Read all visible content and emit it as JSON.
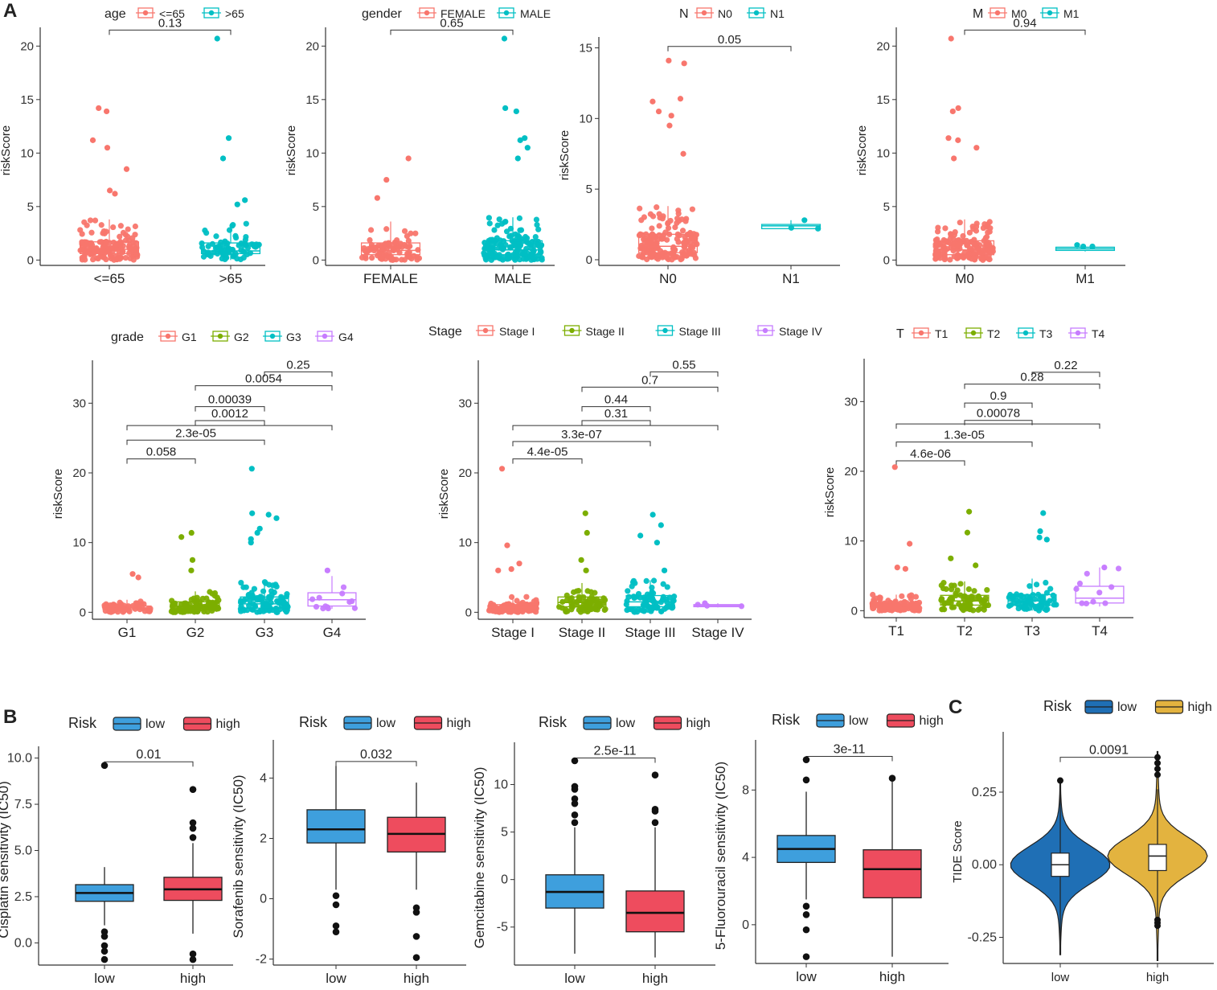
{
  "panel_labels": {
    "A": "A",
    "B": "B",
    "C": "C"
  },
  "colors": {
    "red": "#F8766D",
    "cyan": "#00BFC4",
    "green": "#7CAE00",
    "purple": "#C77CFF",
    "blue_box": "#3E9FDD",
    "red_box": "#EE4C5E",
    "violin_blue": "#1F6FB5",
    "violin_gold": "#E3B33F"
  },
  "chart_data": [
    {
      "type": "box",
      "panel": "A",
      "legend_title": "age",
      "legend": [
        "<=65",
        ">65"
      ],
      "categories": [
        "<=65",
        ">65"
      ],
      "ylabel": "riskScore",
      "yticks": [
        0,
        5,
        10,
        15,
        20
      ],
      "ylim": [
        -0.5,
        21
      ],
      "box": [
        [
          0.6,
          1.0,
          1.7
        ],
        [
          0.6,
          0.85,
          1.6
        ]
      ],
      "whisker": [
        [
          0,
          3.8
        ],
        [
          0,
          3.4
        ]
      ],
      "outliers": [
        [
          14.2,
          13.9,
          11.2,
          10.5,
          8.5,
          6.5,
          6.2
        ],
        [
          20.7,
          11.4,
          9.5,
          5.6,
          5.2
        ]
      ],
      "n": [
        150,
        80
      ],
      "comparisons": [
        {
          "from": 0,
          "to": 1,
          "label": "0.13",
          "y": 21.5
        }
      ]
    },
    {
      "type": "box",
      "panel": "A",
      "legend_title": "gender",
      "legend": [
        "FEMALE",
        "MALE"
      ],
      "categories": [
        "FEMALE",
        "MALE"
      ],
      "ylabel": "riskScore",
      "yticks": [
        0,
        5,
        10,
        15,
        20
      ],
      "ylim": [
        -0.5,
        21
      ],
      "box": [
        [
          0.5,
          0.9,
          1.6
        ],
        [
          0.5,
          0.95,
          1.8
        ]
      ],
      "whisker": [
        [
          0,
          3.6
        ],
        [
          0,
          4
        ]
      ],
      "outliers": [
        [
          9.5,
          7.5,
          5.8
        ],
        [
          20.7,
          14.2,
          13.9,
          11.4,
          11.2,
          10.5,
          9.5
        ]
      ],
      "n": [
        90,
        150
      ],
      "comparisons": [
        {
          "from": 0,
          "to": 1,
          "label": "0.65",
          "y": 21.5
        }
      ]
    },
    {
      "type": "box",
      "panel": "A",
      "legend_title": "N",
      "legend": [
        "N0",
        "N1"
      ],
      "categories": [
        "N0",
        "N1"
      ],
      "ylabel": "riskScore",
      "yticks": [
        0,
        5,
        10,
        15
      ],
      "ylim": [
        -0.4,
        15.2
      ],
      "box": [
        [
          0.5,
          0.95,
          1.8
        ],
        [
          2.2,
          2.4,
          2.5
        ]
      ],
      "whisker": [
        [
          0,
          3.8
        ],
        [
          2.2,
          2.8
        ]
      ],
      "outliers": [
        [
          14.1,
          13.9,
          11.4,
          11.2,
          10.5,
          10.2,
          9.5,
          7.5
        ],
        [
          2.8
        ]
      ],
      "n": [
        170,
        2
      ],
      "comparisons": [
        {
          "from": 0,
          "to": 1,
          "label": "0.05",
          "y": 15.1
        }
      ]
    },
    {
      "type": "box",
      "panel": "A",
      "legend_title": "M",
      "legend": [
        "M0",
        "M1"
      ],
      "categories": [
        "M0",
        "M1"
      ],
      "ylabel": "riskScore",
      "yticks": [
        0,
        5,
        10,
        15,
        20
      ],
      "ylim": [
        -0.5,
        21
      ],
      "box": [
        [
          0.5,
          0.95,
          1.8
        ],
        [
          0.9,
          1.05,
          1.2
        ]
      ],
      "whisker": [
        [
          0,
          3.8
        ],
        [
          0.8,
          1.4
        ]
      ],
      "outliers": [
        [
          20.7,
          14.2,
          13.9,
          11.4,
          11.2,
          10.5,
          9.5
        ],
        [
          1.4
        ]
      ],
      "n": [
        170,
        2
      ],
      "comparisons": [
        {
          "from": 0,
          "to": 1,
          "label": "0.94",
          "y": 21.5
        }
      ]
    },
    {
      "type": "box",
      "panel": "A",
      "legend_title": "grade",
      "legend": [
        "G1",
        "G2",
        "G3",
        "G4"
      ],
      "categories": [
        "G1",
        "G2",
        "G3",
        "G4"
      ],
      "ylabel": "riskScore",
      "yticks": [
        0,
        10,
        20,
        30
      ],
      "ylim": [
        -1,
        35
      ],
      "box": [
        [
          0.4,
          0.6,
          0.9
        ],
        [
          0.5,
          0.9,
          1.5
        ],
        [
          0.6,
          1.2,
          2.2
        ],
        [
          0.9,
          1.8,
          2.8
        ]
      ],
      "whisker": [
        [
          0,
          1.8
        ],
        [
          0,
          3
        ],
        [
          0,
          4.4
        ],
        [
          0.5,
          5.2
        ]
      ],
      "outliers": [
        [
          5.5,
          5
        ],
        [
          11.4,
          10.8,
          7.5,
          6
        ],
        [
          20.6,
          14.2,
          14,
          13.5,
          12,
          11.4,
          10.5,
          10
        ],
        [
          6
        ]
      ],
      "n": [
        60,
        90,
        100,
        12
      ],
      "comparisons": [
        {
          "from": 2,
          "to": 3,
          "label": "0.25",
          "y": 34.5
        },
        {
          "from": 1,
          "to": 3,
          "label": "0.0054",
          "y": 32.5
        },
        {
          "from": 1,
          "to": 2,
          "label": "0.00039",
          "y": 29.5
        },
        {
          "from": 1,
          "to": 2,
          "label": "0.0012",
          "y": 27.5
        },
        {
          "from": 0,
          "to": 3,
          "label": "",
          "y": 26.8
        },
        {
          "from": 0,
          "to": 2,
          "label": "2.3e-05",
          "y": 24.7
        },
        {
          "from": 0,
          "to": 1,
          "label": "0.058",
          "y": 22
        }
      ]
    },
    {
      "type": "box",
      "panel": "A",
      "legend_title": "Stage",
      "legend": [
        "Stage I",
        "Stage II",
        "Stage III",
        "Stage IV"
      ],
      "categories": [
        "Stage I",
        "Stage II",
        "Stage III",
        "Stage IV"
      ],
      "ylabel": "riskScore",
      "yticks": [
        0,
        10,
        20,
        30
      ],
      "ylim": [
        -1,
        35
      ],
      "box": [
        [
          0.4,
          0.7,
          1.1
        ],
        [
          0.8,
          1.4,
          2.2
        ],
        [
          0.8,
          1.5,
          2.4
        ],
        [
          0.8,
          0.95,
          1.1
        ]
      ],
      "whisker": [
        [
          0,
          2.3
        ],
        [
          0,
          4.2
        ],
        [
          0,
          4.6
        ],
        [
          0.7,
          1.3
        ]
      ],
      "outliers": [
        [
          20.6,
          9.6,
          7,
          6.2,
          6
        ],
        [
          14.2,
          11.4,
          7.5,
          6
        ],
        [
          14,
          12.5,
          11,
          10,
          6
        ],
        [
          1.3
        ]
      ],
      "n": [
        110,
        70,
        80,
        3
      ],
      "comparisons": [
        {
          "from": 2,
          "to": 3,
          "label": "0.55",
          "y": 34.5
        },
        {
          "from": 1,
          "to": 3,
          "label": "0.7",
          "y": 32.3
        },
        {
          "from": 1,
          "to": 2,
          "label": "0.44",
          "y": 29.5
        },
        {
          "from": 1,
          "to": 2,
          "label": "0.31",
          "y": 27.5
        },
        {
          "from": 0,
          "to": 3,
          "label": "",
          "y": 26.8
        },
        {
          "from": 0,
          "to": 2,
          "label": "3.3e-07",
          "y": 24.5
        },
        {
          "from": 0,
          "to": 1,
          "label": "4.4e-05",
          "y": 22
        }
      ]
    },
    {
      "type": "box",
      "panel": "A",
      "legend_title": "T",
      "legend": [
        "T1",
        "T2",
        "T3",
        "T4"
      ],
      "categories": [
        "T1",
        "T2",
        "T3",
        "T4"
      ],
      "ylabel": "riskScore",
      "yticks": [
        0,
        10,
        20,
        30
      ],
      "ylim": [
        -1,
        35
      ],
      "box": [
        [
          0.4,
          0.7,
          1.1
        ],
        [
          0.8,
          1.4,
          2.2
        ],
        [
          0.8,
          1.4,
          2.3
        ],
        [
          1.1,
          1.8,
          3.5
        ]
      ],
      "whisker": [
        [
          0,
          2.3
        ],
        [
          0,
          4.2
        ],
        [
          0,
          4.6
        ],
        [
          0.6,
          6.2
        ]
      ],
      "outliers": [
        [
          20.6,
          9.6,
          6.2,
          6
        ],
        [
          14.2,
          11.2,
          7.5,
          6.5
        ],
        [
          14,
          11.4,
          10.5,
          10.2
        ],
        [
          6.2
        ]
      ],
      "n": [
        110,
        75,
        70,
        10
      ],
      "comparisons": [
        {
          "from": 2,
          "to": 3,
          "label": "0.22",
          "y": 34.2
        },
        {
          "from": 1,
          "to": 3,
          "label": "0.28",
          "y": 32.5
        },
        {
          "from": 1,
          "to": 2,
          "label": "0.9",
          "y": 29.8
        },
        {
          "from": 1,
          "to": 2,
          "label": "0.00078",
          "y": 27.3
        },
        {
          "from": 0,
          "to": 3,
          "label": "",
          "y": 26.8
        },
        {
          "from": 0,
          "to": 2,
          "label": "1.3e-05",
          "y": 24.2
        },
        {
          "from": 0,
          "to": 1,
          "label": "4.6e-06",
          "y": 21.5
        }
      ]
    },
    {
      "type": "box",
      "panel": "B",
      "legend_title": "Risk",
      "legend": [
        "low",
        "high"
      ],
      "categories": [
        "low",
        "high"
      ],
      "ylabel": "Cisplatin sensitivity (IC50)",
      "yticks": [
        "0.0",
        "2.5",
        "5.0",
        "7.5",
        "10.0"
      ],
      "ylim": [
        -1.2,
        10.2
      ],
      "box": [
        [
          2.25,
          2.7,
          3.15
        ],
        [
          2.3,
          2.9,
          3.55
        ]
      ],
      "whisker": [
        [
          0.95,
          4.1
        ],
        [
          0.5,
          5.4
        ]
      ],
      "outliers": [
        [
          9.6,
          0.6,
          0.35,
          -0.15,
          -0.45,
          -0.9
        ],
        [
          8.3,
          6.5,
          6.2,
          5.7,
          -0.6,
          -0.9
        ]
      ],
      "comparisons": [
        {
          "from": 0,
          "to": 1,
          "label": "0.01",
          "y": 9.8
        }
      ]
    },
    {
      "type": "box",
      "panel": "B",
      "legend_title": "Risk",
      "legend": [
        "low",
        "high"
      ],
      "categories": [
        "low",
        "high"
      ],
      "ylabel": "Sorafenib sensitivity (IC50)",
      "yticks": [
        -2,
        0,
        2,
        4
      ],
      "ylim": [
        -2.2,
        5
      ],
      "box": [
        [
          1.85,
          2.3,
          2.95
        ],
        [
          1.55,
          2.15,
          2.7
        ]
      ],
      "whisker": [
        [
          0.3,
          4.4
        ],
        [
          0.3,
          3.85
        ]
      ],
      "outliers": [
        [
          0.1,
          -0.2,
          -0.9,
          -1.1
        ],
        [
          -0.3,
          -0.45,
          -1.25,
          -1.95
        ]
      ],
      "comparisons": [
        {
          "from": 0,
          "to": 1,
          "label": "0.032",
          "y": 4.55
        }
      ]
    },
    {
      "type": "box",
      "panel": "B",
      "legend_title": "Risk",
      "legend": [
        "low",
        "high"
      ],
      "categories": [
        "low",
        "high"
      ],
      "ylabel": "Gemcitabine sensitivity (IC50)",
      "yticks": [
        -5,
        0,
        5,
        10
      ],
      "ylim": [
        -9,
        13.6
      ],
      "box": [
        [
          -3,
          -1.3,
          0.5
        ],
        [
          -5.5,
          -3.5,
          -1.2
        ]
      ],
      "whisker": [
        [
          -7.8,
          5.5
        ],
        [
          -8.2,
          5.5
        ]
      ],
      "outliers": [
        [
          12.5,
          9.8,
          9.5,
          8.5,
          8,
          6.8,
          6
        ],
        [
          11,
          7.4,
          7.2,
          6
        ]
      ],
      "comparisons": [
        {
          "from": 0,
          "to": 1,
          "label": "2.5e-11",
          "y": 12.8
        }
      ]
    },
    {
      "type": "box",
      "panel": "B",
      "legend_title": "Risk",
      "legend": [
        "low",
        "high"
      ],
      "categories": [
        "low",
        "high"
      ],
      "ylabel": "5-Fluorouracil sensitivity (IC50)",
      "yticks": [
        0,
        4,
        8
      ],
      "ylim": [
        -2.3,
        10.5
      ],
      "box": [
        [
          3.7,
          4.5,
          5.3
        ],
        [
          1.6,
          3.3,
          4.45
        ]
      ],
      "whisker": [
        [
          1.5,
          7.9
        ],
        [
          -1.9,
          8.5
        ]
      ],
      "outliers": [
        [
          9.8,
          8.6,
          1.1,
          0.6,
          -0.3,
          -1.9
        ],
        [
          8.7
        ]
      ],
      "comparisons": [
        {
          "from": 0,
          "to": 1,
          "label": "3e-11",
          "y": 10
        }
      ]
    },
    {
      "type": "violin",
      "panel": "C",
      "legend_title": "Risk",
      "legend": [
        "low",
        "high"
      ],
      "categories": [
        "low",
        "high"
      ],
      "ylabel": "TIDE Score",
      "yticks": [
        "-0.25",
        "0.00",
        "0.25"
      ],
      "ylim": [
        -0.34,
        0.43
      ],
      "range": [
        [
          -0.31,
          0.29
        ],
        [
          -0.33,
          0.39
        ]
      ],
      "box": [
        [
          -0.04,
          0,
          0.04
        ],
        [
          -0.02,
          0.03,
          0.07
        ]
      ],
      "whisker": [
        [
          -0.29,
          0.28
        ],
        [
          -0.18,
          0.26
        ]
      ],
      "outliers": [
        [
          0.29
        ],
        [
          0.37,
          0.35,
          0.33,
          0.31,
          -0.19,
          -0.2,
          -0.21
        ]
      ],
      "comparisons": [
        {
          "from": 0,
          "to": 1,
          "label": "0.0091",
          "y": 0.37
        }
      ]
    }
  ]
}
